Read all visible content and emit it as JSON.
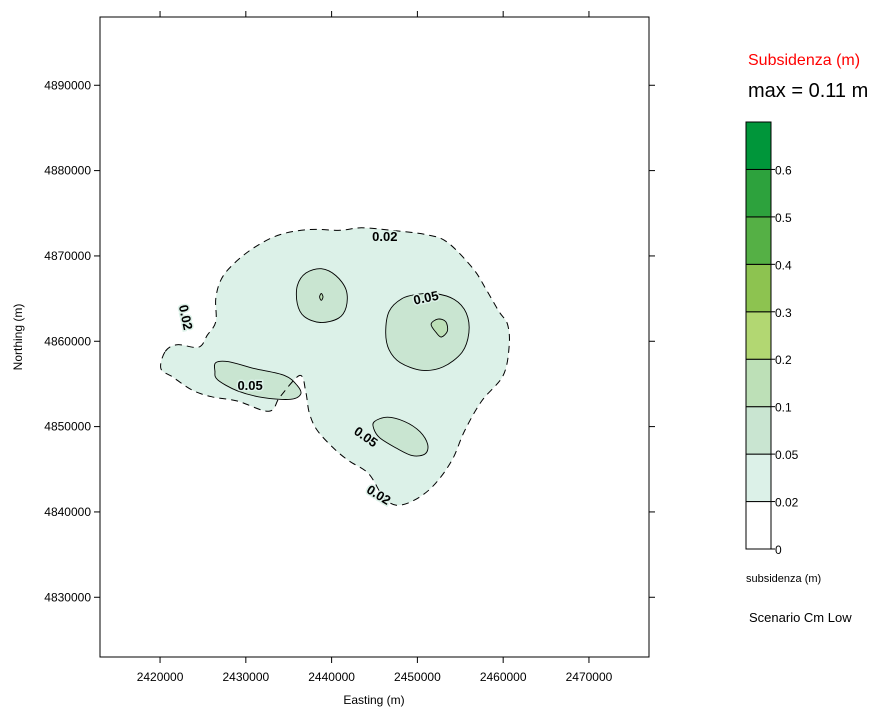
{
  "chart_data": {
    "type": "contour",
    "xlabel": "Easting (m)",
    "ylabel": "Northing (m)",
    "xlim": [
      2413000,
      2477000
    ],
    "ylim": [
      4823000,
      4898000
    ],
    "x_ticks": [
      2420000,
      2430000,
      2440000,
      2450000,
      2460000,
      2470000
    ],
    "y_ticks": [
      4830000,
      4840000,
      4850000,
      4860000,
      4870000,
      4880000,
      4890000
    ],
    "grid": false,
    "contour_labels": [
      {
        "text": "0.02",
        "x": 2446200,
        "y": 4872300,
        "angle": 0
      },
      {
        "text": "0.02",
        "x": 2423000,
        "y": 4862800,
        "angle": 78
      },
      {
        "text": "0.02",
        "x": 2445500,
        "y": 4842000,
        "angle": 32
      },
      {
        "text": "0.05",
        "x": 2451000,
        "y": 4865100,
        "angle": -12
      },
      {
        "text": "0.05",
        "x": 2430500,
        "y": 4854800,
        "angle": 0
      },
      {
        "text": "0.05",
        "x": 2444000,
        "y": 4848800,
        "angle": 35
      }
    ],
    "regions": {
      "level_0_02": [
        [
          2420600,
          4858800
        ],
        [
          2422000,
          4859600
        ],
        [
          2424500,
          4859300
        ],
        [
          2425500,
          4860700
        ],
        [
          2426500,
          4862300
        ],
        [
          2426500,
          4865000
        ],
        [
          2427100,
          4867200
        ],
        [
          2428500,
          4869000
        ],
        [
          2431000,
          4871000
        ],
        [
          2434000,
          4872500
        ],
        [
          2437500,
          4873100
        ],
        [
          2441000,
          4873000
        ],
        [
          2443500,
          4873300
        ],
        [
          2447000,
          4873000
        ],
        [
          2451000,
          4872500
        ],
        [
          2453500,
          4871600
        ],
        [
          2456500,
          4868500
        ],
        [
          2458000,
          4866100
        ],
        [
          2459500,
          4863500
        ],
        [
          2460500,
          4862000
        ],
        [
          2460700,
          4859500
        ],
        [
          2460000,
          4856000
        ],
        [
          2457500,
          4853000
        ],
        [
          2455500,
          4849500
        ],
        [
          2454000,
          4846000
        ],
        [
          2451800,
          4843000
        ],
        [
          2449500,
          4841300
        ],
        [
          2447500,
          4840800
        ],
        [
          2446000,
          4841800
        ],
        [
          2444300,
          4844500
        ],
        [
          2442000,
          4846000
        ],
        [
          2440200,
          4847500
        ],
        [
          2438300,
          4849600
        ],
        [
          2437400,
          4851600
        ],
        [
          2437000,
          4854000
        ],
        [
          2436300,
          4856000
        ],
        [
          2434000,
          4853500
        ],
        [
          2432700,
          4851800
        ],
        [
          2429000,
          4853000
        ],
        [
          2426000,
          4853500
        ],
        [
          2423700,
          4854300
        ],
        [
          2421500,
          4855800
        ],
        [
          2420100,
          4856800
        ]
      ],
      "level_0_05": [
        [
          [
            2426500,
            4857500
          ],
          [
            2428000,
            4857600
          ],
          [
            2431000,
            4856800
          ],
          [
            2434500,
            4856000
          ],
          [
            2436000,
            4854800
          ],
          [
            2436400,
            4853800
          ],
          [
            2435200,
            4853200
          ],
          [
            2432000,
            4853400
          ],
          [
            2429000,
            4854200
          ],
          [
            2426700,
            4855500
          ],
          [
            2426400,
            4856500
          ]
        ],
        [
          [
            2436000,
            4866500
          ],
          [
            2437000,
            4868000
          ],
          [
            2438800,
            4868500
          ],
          [
            2440500,
            4867700
          ],
          [
            2441700,
            4866000
          ],
          [
            2441700,
            4864000
          ],
          [
            2440800,
            4862700
          ],
          [
            2438700,
            4862200
          ],
          [
            2436800,
            4862900
          ],
          [
            2436000,
            4864400
          ]
        ],
        [
          [
            2446300,
            4861000
          ],
          [
            2446700,
            4863500
          ],
          [
            2448200,
            4865000
          ],
          [
            2450000,
            4865500
          ],
          [
            2452000,
            4865600
          ],
          [
            2454300,
            4864900
          ],
          [
            2455700,
            4863300
          ],
          [
            2456000,
            4861000
          ],
          [
            2455200,
            4858700
          ],
          [
            2453000,
            4857000
          ],
          [
            2450500,
            4856600
          ],
          [
            2448000,
            4857500
          ],
          [
            2446700,
            4859000
          ]
        ],
        [
          [
            2445000,
            4850600
          ],
          [
            2446500,
            4851100
          ],
          [
            2448500,
            4850600
          ],
          [
            2450300,
            4849400
          ],
          [
            2451200,
            4847900
          ],
          [
            2450900,
            4846800
          ],
          [
            2449400,
            4846600
          ],
          [
            2447500,
            4847500
          ],
          [
            2445600,
            4848700
          ],
          [
            2444900,
            4849800
          ]
        ]
      ],
      "level_0_1": [
        [
          [
            2452200,
            4861000
          ],
          [
            2451600,
            4862000
          ],
          [
            2452400,
            4862600
          ],
          [
            2453300,
            4862300
          ],
          [
            2453500,
            4861200
          ],
          [
            2452800,
            4860500
          ]
        ],
        [
          [
            2438600,
            4865200
          ],
          [
            2438800,
            4865600
          ],
          [
            2439000,
            4865200
          ],
          [
            2438800,
            4864800
          ]
        ]
      ]
    },
    "legend": {
      "title": "Subsidenza (m)",
      "max_text": "max = 0.11 m",
      "levels": [
        0,
        0.02,
        0.05,
        0.1,
        0.2,
        0.3,
        0.4,
        0.5,
        0.6
      ],
      "level_labels": [
        "0",
        "0.02",
        "0.05",
        "0.1",
        "0.2",
        "0.3",
        "0.4",
        "0.5",
        "0.6"
      ],
      "colors": [
        "#ffffff",
        "#dcf1e8",
        "#c9e5d1",
        "#bde0b7",
        "#b2d772",
        "#8dc350",
        "#55b045",
        "#2da23d",
        "#00963a"
      ],
      "label": "subsidenza (m)",
      "scenario": "Scenario Cm Low"
    }
  }
}
